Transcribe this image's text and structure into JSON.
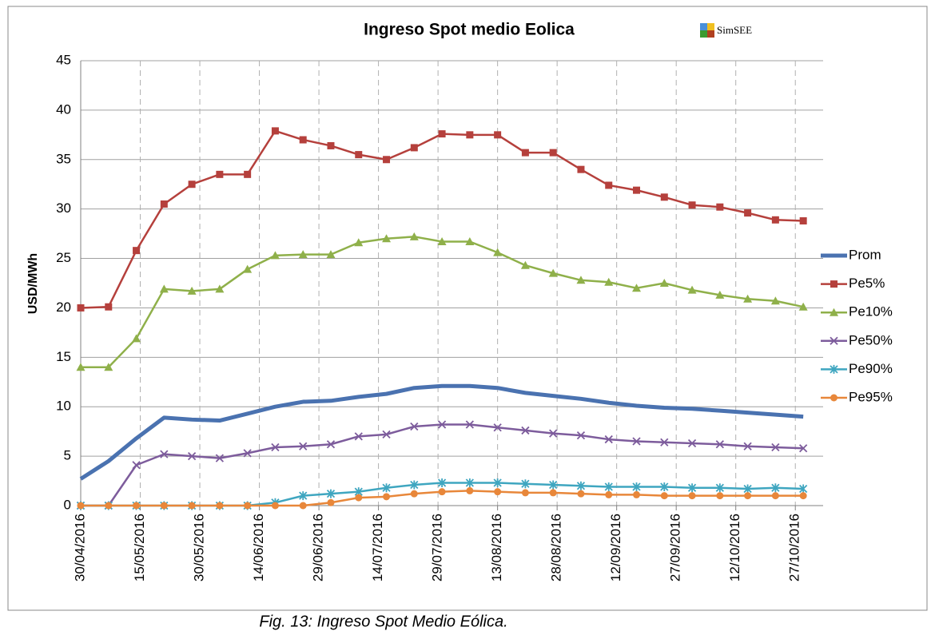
{
  "chart_data": {
    "type": "line",
    "title": "Ingreso Spot medio Eolica",
    "logo": "SimSEE",
    "y_label": "USD/MWh",
    "x": [
      "30/04/2016",
      "07/05/2016",
      "14/05/2016",
      "21/05/2016",
      "28/05/2016",
      "04/06/2016",
      "11/06/2016",
      "18/06/2016",
      "25/06/2016",
      "02/07/2016",
      "09/07/2016",
      "16/07/2016",
      "23/07/2016",
      "30/07/2016",
      "06/08/2016",
      "13/08/2016",
      "20/08/2016",
      "27/08/2016",
      "03/09/2016",
      "10/09/2016",
      "17/09/2016",
      "24/09/2016",
      "01/10/2016",
      "08/10/2016",
      "15/10/2016",
      "22/10/2016",
      "29/10/2016"
    ],
    "xlim": [
      "30/04/2016",
      "03/11/2016"
    ],
    "xticks": [
      "30/04/2016",
      "15/05/2016",
      "30/05/2016",
      "14/06/2016",
      "29/06/2016",
      "14/07/2016",
      "29/07/2016",
      "13/08/2016",
      "28/08/2016",
      "12/09/2016",
      "27/09/2016",
      "12/10/2016",
      "27/10/2016"
    ],
    "ylim": [
      0,
      45
    ],
    "yticks": [
      0,
      5,
      10,
      15,
      20,
      25,
      30,
      35,
      40,
      45
    ],
    "grid": true,
    "legend": "right",
    "series": [
      {
        "name": "Prom",
        "color": "#4a72b0",
        "marker": "none",
        "line_width": 5,
        "values": [
          2.7,
          4.5,
          6.8,
          8.9,
          8.7,
          8.6,
          9.3,
          10.0,
          10.5,
          10.6,
          11.0,
          11.3,
          11.9,
          12.1,
          12.1,
          11.9,
          11.4,
          11.1,
          10.8,
          10.4,
          10.1,
          9.9,
          9.8,
          9.6,
          9.4,
          9.2,
          9.0
        ]
      },
      {
        "name": "Pe5%",
        "color": "#b5403c",
        "marker": "square",
        "line_width": 2.5,
        "values": [
          20.0,
          20.1,
          25.8,
          30.5,
          32.5,
          33.5,
          33.5,
          37.9,
          37.0,
          36.4,
          35.5,
          35.0,
          36.2,
          37.6,
          37.5,
          37.5,
          35.7,
          35.7,
          34.0,
          32.4,
          31.9,
          31.2,
          30.4,
          30.2,
          29.6,
          28.9,
          28.8
        ]
      },
      {
        "name": "Pe10%",
        "color": "#8fb04a",
        "marker": "triangle",
        "line_width": 2.5,
        "values": [
          14.0,
          14.0,
          16.9,
          21.9,
          21.7,
          21.9,
          23.9,
          25.3,
          25.4,
          25.4,
          26.6,
          27.0,
          27.2,
          26.7,
          26.7,
          25.6,
          24.3,
          23.5,
          22.8,
          22.6,
          22.0,
          22.5,
          21.8,
          21.3,
          20.9,
          20.7,
          20.1
        ]
      },
      {
        "name": "Pe50%",
        "color": "#7d5c9c",
        "marker": "x",
        "line_width": 2.5,
        "values": [
          0,
          0,
          4.1,
          5.2,
          5.0,
          4.8,
          5.3,
          5.9,
          6.0,
          6.2,
          7.0,
          7.2,
          8.0,
          8.2,
          8.2,
          7.9,
          7.6,
          7.3,
          7.1,
          6.7,
          6.5,
          6.4,
          6.3,
          6.2,
          6.0,
          5.9,
          5.8
        ]
      },
      {
        "name": "Pe90%",
        "color": "#3fa6c0",
        "marker": "star",
        "line_width": 2.5,
        "values": [
          0,
          0,
          0,
          0,
          0,
          0,
          0,
          0.3,
          1.0,
          1.2,
          1.4,
          1.8,
          2.1,
          2.3,
          2.3,
          2.3,
          2.2,
          2.1,
          2.0,
          1.9,
          1.9,
          1.9,
          1.8,
          1.8,
          1.7,
          1.8,
          1.7
        ]
      },
      {
        "name": "Pe95%",
        "color": "#e8873a",
        "marker": "circle",
        "line_width": 2.5,
        "values": [
          0,
          0,
          0,
          0,
          0,
          0,
          0,
          0,
          0,
          0.3,
          0.8,
          0.9,
          1.2,
          1.4,
          1.5,
          1.4,
          1.3,
          1.3,
          1.2,
          1.1,
          1.1,
          1.0,
          1.0,
          1.0,
          1.0,
          1.0,
          1.0
        ]
      }
    ]
  },
  "caption": "Fig. 13: Ingreso Spot Medio Eólica."
}
